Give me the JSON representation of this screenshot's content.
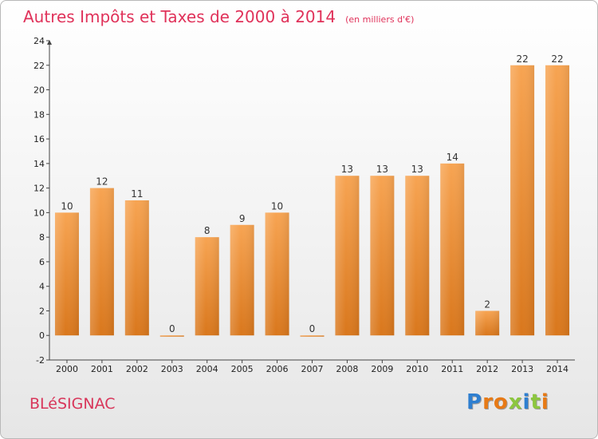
{
  "chart_data": {
    "type": "bar",
    "title": "Autres Impôts et Taxes de 2000 à 2014",
    "subtitle": "(en milliers d'€)",
    "categories": [
      "2000",
      "2001",
      "2002",
      "2003",
      "2004",
      "2005",
      "2006",
      "2007",
      "2008",
      "2009",
      "2010",
      "2011",
      "2012",
      "2013",
      "2014"
    ],
    "values": [
      10,
      12,
      11,
      0,
      8,
      9,
      10,
      0,
      13,
      13,
      13,
      14,
      2,
      22,
      22
    ],
    "ylim": [
      -2,
      24
    ],
    "yticks": [
      -2,
      0,
      2,
      4,
      6,
      8,
      10,
      12,
      14,
      16,
      18,
      20,
      22,
      24
    ],
    "grid": false,
    "colors": {
      "bar_top": "#f7a452",
      "bar_bottom": "#d9771c",
      "title": "#e0325a"
    }
  },
  "footer": {
    "commune": "BLéSIGNAC",
    "brand_letters": [
      {
        "ch": "P",
        "color": "#2f7fd0"
      },
      {
        "ch": "r",
        "color": "#e77a16"
      },
      {
        "ch": "o",
        "color": "#e77a16"
      },
      {
        "ch": "x",
        "color": "#8cc63f"
      },
      {
        "ch": "i",
        "color": "#2f7fd0"
      },
      {
        "ch": "t",
        "color": "#8cc63f"
      },
      {
        "ch": "i",
        "color": "#e77a16"
      }
    ]
  }
}
